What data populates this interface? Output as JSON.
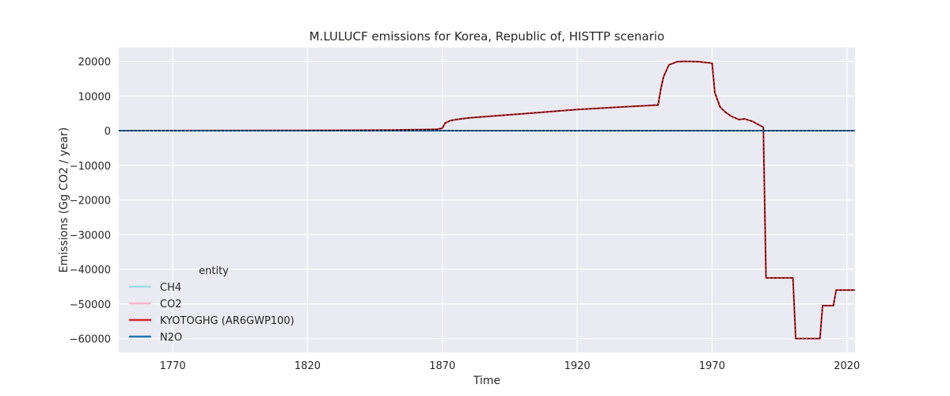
{
  "chart_data": {
    "type": "line",
    "title": "M.LULUCF emissions for Korea, Republic of, HISTTP scenario",
    "xlabel": "Time",
    "ylabel": "Emissions (Gg CO2 / year)",
    "xlim": [
      1750,
      2023
    ],
    "ylim": [
      -64000,
      24000
    ],
    "x_ticks": [
      1770,
      1820,
      1870,
      1920,
      1970,
      2020
    ],
    "y_ticks": [
      20000,
      10000,
      0,
      -10000,
      -20000,
      -30000,
      -40000,
      -50000,
      -60000
    ],
    "x_tick_labels": [
      "1770",
      "1820",
      "1870",
      "1920",
      "1970",
      "2020"
    ],
    "y_tick_labels": [
      "20000",
      "10000",
      "0",
      "−10000",
      "−20000",
      "−30000",
      "−40000",
      "−50000",
      "−60000"
    ],
    "grid": true,
    "legend": {
      "title": "entity",
      "placement": "lower-left",
      "entries": [
        "CH4",
        "CO2",
        "KYOTOGHG (AR6GWP100)",
        "N2O"
      ]
    },
    "series": [
      {
        "name": "CH4",
        "color": "#9edae5",
        "style": "solid",
        "x": [
          1750,
          2023
        ],
        "y": [
          0,
          0
        ]
      },
      {
        "name": "CO2",
        "color": "#f7b6d2",
        "style": "solid",
        "x": [
          1750,
          1800,
          1850,
          1868,
          1870,
          1871,
          1873,
          1875,
          1880,
          1900,
          1920,
          1940,
          1950,
          1951,
          1952,
          1954,
          1957,
          1960,
          1965,
          1970,
          1971,
          1973,
          1975,
          1977,
          1980,
          1982,
          1985,
          1988,
          1989,
          1990,
          1995,
          2000,
          2001,
          2005,
          2010,
          2011,
          2015,
          2016,
          2020,
          2023
        ],
        "y": [
          0,
          50,
          150,
          400,
          700,
          2200,
          2900,
          3200,
          3700,
          4900,
          6100,
          7000,
          7400,
          12000,
          15500,
          19000,
          19900,
          20000,
          19900,
          19500,
          11000,
          6800,
          5300,
          4200,
          3200,
          3400,
          2700,
          1400,
          1000,
          -42500,
          -42500,
          -42500,
          -60000,
          -60000,
          -60000,
          -50500,
          -50500,
          -46000,
          -46000,
          -46000
        ]
      },
      {
        "name": "KYOTOGHG (AR6GWP100)",
        "color": "#d62728",
        "style": "solid",
        "x": [
          1750,
          1800,
          1850,
          1868,
          1870,
          1871,
          1873,
          1875,
          1880,
          1900,
          1920,
          1940,
          1950,
          1951,
          1952,
          1954,
          1957,
          1960,
          1965,
          1970,
          1971,
          1973,
          1975,
          1977,
          1980,
          1982,
          1985,
          1988,
          1989,
          1990,
          1995,
          2000,
          2001,
          2005,
          2010,
          2011,
          2015,
          2016,
          2020,
          2023
        ],
        "y": [
          0,
          50,
          150,
          400,
          700,
          2200,
          2900,
          3200,
          3700,
          4900,
          6100,
          7000,
          7400,
          12000,
          15500,
          19000,
          19900,
          20000,
          19900,
          19500,
          11000,
          6800,
          5300,
          4200,
          3200,
          3400,
          2700,
          1400,
          1000,
          -42500,
          -42500,
          -42500,
          -60000,
          -60000,
          -60000,
          -50500,
          -50500,
          -46000,
          -46000,
          -46000
        ]
      },
      {
        "name": "N2O",
        "color": "#1f77b4",
        "style": "solid",
        "x": [
          1750,
          2023
        ],
        "y": [
          0,
          0
        ]
      }
    ],
    "overlays": [
      {
        "color": "#000000",
        "style": "dashed",
        "x": [
          1750,
          1800,
          1850,
          1868,
          1870,
          1871,
          1873,
          1875,
          1880,
          1900,
          1920,
          1940,
          1950,
          1951,
          1952,
          1954,
          1957,
          1960,
          1965,
          1970,
          1971,
          1973,
          1975,
          1977,
          1980,
          1982,
          1985,
          1988,
          1989,
          1990,
          1995,
          2000,
          2001,
          2005,
          2010,
          2011,
          2015,
          2016,
          2020,
          2023
        ],
        "y": [
          0,
          50,
          150,
          400,
          700,
          2200,
          2900,
          3200,
          3700,
          4900,
          6100,
          7000,
          7400,
          12000,
          15500,
          19000,
          19900,
          20000,
          19900,
          19500,
          11000,
          6800,
          5300,
          4200,
          3200,
          3400,
          2700,
          1400,
          1000,
          -42500,
          -42500,
          -42500,
          -60000,
          -60000,
          -60000,
          -50500,
          -50500,
          -46000,
          -46000,
          -46000
        ]
      },
      {
        "color": "#000000",
        "style": "dashed",
        "x": [
          1750,
          2023
        ],
        "y": [
          0,
          0
        ]
      }
    ],
    "colors": {
      "plot_background": "#eaeaf2",
      "grid": "#ffffff",
      "text": "#262626"
    }
  }
}
